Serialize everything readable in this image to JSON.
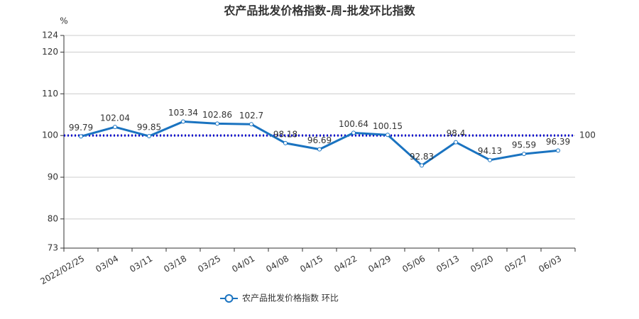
{
  "chart_data": {
    "type": "line",
    "title": "农产品批发价格指数-周-批发环比指数",
    "y_unit": "%",
    "categories": [
      "2022/02/25",
      "03/04",
      "03/11",
      "03/18",
      "03/25",
      "04/01",
      "04/08",
      "04/15",
      "04/22",
      "04/29",
      "05/06",
      "05/13",
      "05/20",
      "05/27",
      "06/03"
    ],
    "series": [
      {
        "name": "农产品批发价格指数  环比",
        "color": "#1a73c0",
        "values": [
          99.79,
          102.04,
          99.85,
          103.34,
          102.86,
          102.7,
          98.18,
          96.69,
          100.64,
          100.15,
          92.83,
          98.4,
          94.13,
          95.59,
          96.39
        ]
      }
    ],
    "ylim": [
      73,
      124
    ],
    "yticks": [
      73,
      80,
      90,
      100,
      110,
      120,
      124
    ],
    "grid": true,
    "reference_line": 100,
    "reference_color": "#0000cc",
    "legend": "bottom"
  }
}
